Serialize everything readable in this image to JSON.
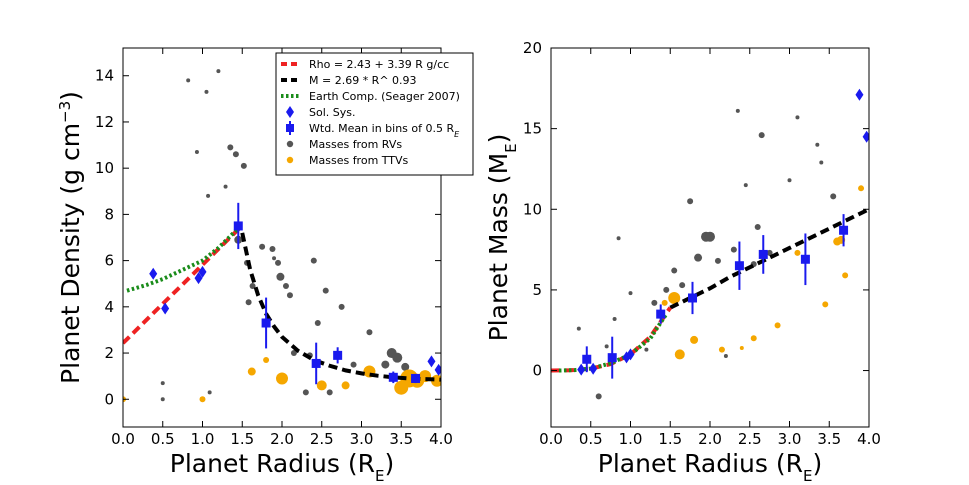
{
  "chart_data": [
    {
      "type": "scatter",
      "id": "density",
      "xlabel": "Planet Radius",
      "xlabel_sub": "E",
      "ylabel": "Planet Density",
      "ylabel_units": "(g cm",
      "ylabel_exp": "−3",
      "ylabel_close": ")",
      "xlim": [
        0.0,
        4.0
      ],
      "ylim": [
        -1.2,
        15.2
      ],
      "xticks": [
        0.0,
        0.5,
        1.0,
        1.5,
        2.0,
        2.5,
        3.0,
        3.5,
        4.0
      ],
      "xtick_labels": [
        "0.0",
        "0.5",
        "1.0",
        "1.5",
        "2.0",
        "2.5",
        "3.0",
        "3.5",
        "4.0"
      ],
      "yticks": [
        0,
        2,
        4,
        6,
        8,
        10,
        12,
        14
      ],
      "ytick_labels": [
        "0",
        "2",
        "4",
        "6",
        "8",
        "10",
        "12",
        "14"
      ],
      "legend": {
        "position": "top-right",
        "entries": [
          {
            "label": "Rho = 2.43 + 3.39 R g/cc",
            "kind": "dash",
            "color": "#ee2222"
          },
          {
            "label": "M = 2.69 * R^ 0.93",
            "kind": "dash",
            "color": "#000000"
          },
          {
            "label": "Earth Comp. (Seager 2007)",
            "kind": "dotted",
            "color": "#1a8c1a"
          },
          {
            "label": "Sol. Sys.",
            "kind": "diamond",
            "color": "#1a1aee"
          },
          {
            "label": "Wtd. Mean in bins of 0.5 R",
            "sub": "E",
            "kind": "square",
            "color": "#1a1aee"
          },
          {
            "label": "Masses from RVs",
            "kind": "dot",
            "color": "#555555"
          },
          {
            "label": "Masses from TTVs",
            "kind": "dot",
            "color": "#f5a700"
          }
        ]
      },
      "series": [
        {
          "name": "Rho = 2.43 + 3.39 R g/cc",
          "style": "dash",
          "color": "#ee2222",
          "x": [
            0.0,
            0.25,
            0.5,
            0.75,
            1.0,
            1.25,
            1.5
          ],
          "y": [
            2.43,
            3.28,
            4.13,
            4.97,
            5.82,
            6.67,
            7.52
          ]
        },
        {
          "name": "M = 2.69 * R^ 0.93",
          "style": "dash",
          "color": "#000000",
          "x": [
            1.5,
            1.6,
            1.7,
            1.8,
            1.9,
            2.0,
            2.2,
            2.4,
            2.6,
            2.8,
            3.0,
            3.2,
            3.4,
            3.6,
            3.8,
            4.0
          ],
          "y": [
            7.2,
            5.6,
            4.5,
            3.7,
            3.15,
            2.7,
            2.1,
            1.7,
            1.45,
            1.25,
            1.12,
            1.02,
            0.95,
            0.9,
            0.87,
            0.85
          ]
        },
        {
          "name": "Earth Comp. (Seager 2007)",
          "style": "dotted",
          "color": "#1a8c1a",
          "x": [
            0.05,
            0.3,
            0.5,
            0.75,
            1.0,
            1.2,
            1.45
          ],
          "y": [
            4.7,
            4.95,
            5.2,
            5.6,
            6.0,
            6.55,
            7.4
          ]
        },
        {
          "name": "Sol. Sys.",
          "style": "diamond",
          "color": "#1a1aee",
          "x": [
            0.38,
            0.53,
            0.95,
            1.0,
            3.88,
            3.97
          ],
          "y": [
            5.43,
            3.93,
            5.24,
            5.51,
            1.64,
            1.27
          ]
        },
        {
          "name": "Wtd. Mean in bins of 0.5 R_E",
          "style": "errorbar",
          "color": "#1a1aee",
          "x": [
            1.45,
            1.8,
            2.43,
            2.7,
            3.4,
            3.68
          ],
          "y": [
            7.5,
            3.3,
            1.55,
            1.9,
            0.95,
            0.9
          ],
          "err": [
            1.0,
            1.1,
            0.9,
            0.35,
            0.25,
            0.2
          ]
        },
        {
          "name": "Masses from RVs",
          "style": "dot",
          "color": "#555555",
          "x": [
            0.5,
            0.5,
            0.82,
            0.93,
            1.05,
            1.07,
            1.09,
            1.2,
            1.29,
            1.35,
            1.42,
            1.45,
            1.52,
            1.56,
            1.58,
            1.63,
            1.75,
            1.88,
            1.9,
            1.95,
            1.98,
            2.05,
            2.15,
            2.1,
            2.3,
            2.35,
            2.4,
            2.45,
            2.55,
            2.6,
            2.75,
            2.9,
            3.1,
            3.3,
            3.38,
            3.45,
            3.55
          ],
          "y": [
            0.0,
            0.7,
            13.8,
            10.7,
            13.3,
            8.8,
            0.3,
            14.2,
            9.2,
            10.9,
            10.6,
            6.9,
            10.1,
            5.9,
            4.2,
            4.9,
            6.6,
            6.5,
            6.1,
            5.9,
            5.3,
            4.9,
            2.0,
            4.5,
            0.3,
            1.9,
            6.0,
            3.3,
            4.7,
            0.3,
            4.0,
            1.5,
            2.9,
            1.5,
            2.0,
            1.8,
            1.4
          ],
          "s": [
            2,
            2,
            2,
            2,
            2,
            2,
            2,
            2,
            2,
            3,
            3,
            4,
            3,
            3,
            3,
            3,
            3,
            3,
            2,
            3,
            4,
            3,
            3,
            3,
            3,
            3,
            3,
            3,
            3,
            3,
            3,
            3,
            3,
            4,
            5,
            5,
            4
          ]
        },
        {
          "name": "Masses from TTVs",
          "style": "dot",
          "color": "#f5a700",
          "x": [
            0.0,
            1.0,
            1.62,
            1.8,
            2.0,
            2.5,
            2.8,
            3.1,
            3.5,
            3.6,
            3.7,
            3.8,
            3.95
          ],
          "y": [
            0.0,
            0.0,
            1.2,
            1.7,
            0.9,
            0.6,
            0.6,
            1.2,
            0.5,
            0.9,
            0.8,
            1.0,
            0.8
          ],
          "s": [
            3,
            3,
            4,
            3,
            6,
            5,
            4,
            6,
            7,
            9,
            7,
            6,
            6
          ]
        }
      ]
    },
    {
      "type": "scatter",
      "id": "mass",
      "xlabel": "Planet Radius",
      "xlabel_sub": "E",
      "ylabel": "Planet Mass",
      "ylabel_units": "",
      "ylabel_sub": "E",
      "xlim": [
        0.0,
        4.0
      ],
      "ylim": [
        -3.5,
        20.0
      ],
      "xticks": [
        0.0,
        0.5,
        1.0,
        1.5,
        2.0,
        2.5,
        3.0,
        3.5,
        4.0
      ],
      "xtick_labels": [
        "0.0",
        "0.5",
        "1.0",
        "1.5",
        "2.0",
        "2.5",
        "3.0",
        "3.5",
        "4.0"
      ],
      "yticks": [
        0,
        5,
        10,
        15,
        20
      ],
      "ytick_labels": [
        "0",
        "5",
        "10",
        "15",
        "20"
      ],
      "series": [
        {
          "name": "M = 2.69 * R^ 0.93",
          "style": "dash",
          "color": "#000000",
          "x": [
            1.5,
            1.75,
            2.0,
            2.25,
            2.5,
            2.75,
            3.0,
            3.25,
            3.5,
            3.75,
            4.0
          ],
          "y": [
            3.9,
            4.5,
            5.1,
            5.8,
            6.4,
            7.0,
            7.6,
            8.2,
            8.8,
            9.4,
            10.0
          ]
        },
        {
          "name": "Rho = 2.43 + 3.39 R g/cc",
          "style": "dash",
          "color": "#ee2222",
          "x": [
            0.0,
            0.25,
            0.5,
            0.75,
            1.0,
            1.25,
            1.5
          ],
          "y": [
            0.0,
            0.02,
            0.12,
            0.4,
            1.0,
            2.1,
            3.9
          ]
        },
        {
          "name": "Earth Comp. (Seager 2007)",
          "style": "dotted",
          "color": "#1a8c1a",
          "x": [
            0.1,
            0.3,
            0.5,
            0.75,
            1.0,
            1.25,
            1.45
          ],
          "y": [
            0.0,
            0.03,
            0.12,
            0.45,
            1.0,
            2.0,
            3.5
          ]
        },
        {
          "name": "Sol. Sys.",
          "style": "diamond",
          "color": "#1a1aee",
          "x": [
            0.38,
            0.53,
            0.95,
            1.0,
            3.88,
            3.97
          ],
          "y": [
            0.06,
            0.11,
            0.82,
            1.0,
            17.1,
            14.5
          ]
        },
        {
          "name": "Wtd. Mean in bins of 0.5 R_E",
          "style": "errorbar",
          "color": "#1a1aee",
          "x": [
            0.45,
            0.77,
            1.38,
            1.78,
            2.37,
            2.67,
            3.2,
            3.68
          ],
          "y": [
            0.7,
            0.8,
            3.5,
            4.5,
            6.5,
            7.2,
            6.9,
            8.7
          ],
          "err": [
            0.8,
            1.3,
            0.6,
            1.0,
            1.5,
            1.2,
            1.6,
            1.0
          ]
        },
        {
          "name": "Masses from RVs",
          "style": "dot",
          "color": "#555555",
          "x": [
            0.35,
            0.6,
            0.7,
            0.8,
            0.85,
            1.0,
            1.2,
            1.3,
            1.45,
            1.55,
            1.65,
            1.75,
            1.85,
            1.95,
            2.0,
            2.1,
            2.2,
            2.3,
            2.35,
            2.45,
            2.55,
            2.6,
            2.65,
            2.75,
            3.0,
            3.1,
            3.35,
            3.4,
            3.55
          ],
          "y": [
            2.6,
            -1.6,
            1.5,
            3.2,
            8.2,
            4.8,
            1.3,
            4.2,
            5.0,
            6.2,
            5.3,
            10.5,
            7.0,
            8.3,
            8.3,
            6.8,
            0.9,
            7.5,
            16.1,
            11.5,
            6.6,
            8.9,
            14.6,
            7.3,
            11.8,
            15.7,
            14.0,
            12.9,
            10.8
          ],
          "s": [
            2,
            3,
            2,
            2,
            2,
            2,
            2,
            3,
            3,
            3,
            3,
            3,
            4,
            5,
            5,
            3,
            2,
            3,
            2,
            2,
            3,
            3,
            3,
            3,
            2,
            2,
            2,
            2,
            3
          ]
        },
        {
          "name": "Masses from TTVs",
          "style": "dot",
          "color": "#f5a700",
          "x": [
            1.43,
            1.55,
            1.62,
            1.8,
            2.15,
            2.4,
            2.55,
            2.85,
            3.1,
            3.45,
            3.6,
            3.65,
            3.7,
            3.9
          ],
          "y": [
            4.2,
            4.5,
            1.0,
            1.9,
            1.3,
            1.4,
            2.0,
            2.8,
            7.3,
            4.1,
            8.0,
            8.1,
            5.9,
            11.3
          ],
          "s": [
            3,
            6,
            5,
            4,
            3,
            2,
            3,
            3,
            3,
            3,
            4,
            4,
            3,
            3
          ]
        }
      ]
    }
  ]
}
